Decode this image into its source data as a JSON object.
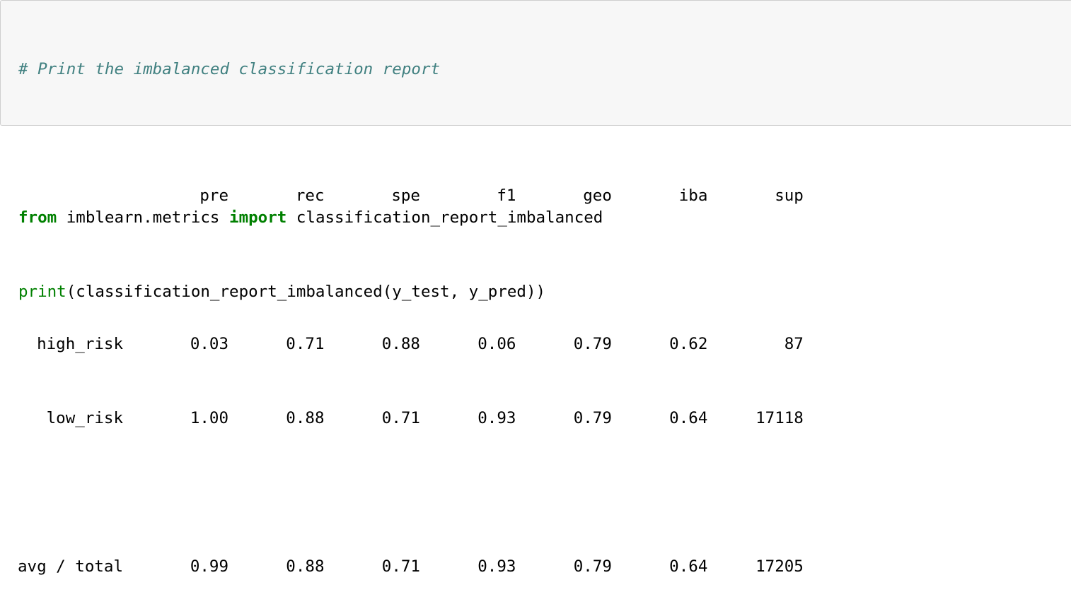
{
  "code_cell": {
    "lines": [
      {
        "comment": "# Print the imbalanced classification report"
      },
      {
        "blank": ""
      },
      {
        "kw1": "from",
        "t1": " imblearn.metrics ",
        "kw2": "import",
        "t2": " classification_report_imbalanced"
      },
      {
        "builtin": "print",
        "t1": "(classification_report_imbalanced(y_test, y_pred))"
      }
    ]
  },
  "report": {
    "headers": [
      "pre",
      "rec",
      "spe",
      "f1",
      "geo",
      "iba",
      "sup"
    ],
    "rows": [
      {
        "label": "high_risk",
        "values": [
          "0.03",
          "0.71",
          "0.88",
          "0.06",
          "0.79",
          "0.62",
          "87"
        ]
      },
      {
        "label": "low_risk",
        "values": [
          "1.00",
          "0.88",
          "0.71",
          "0.93",
          "0.79",
          "0.64",
          "17118"
        ]
      }
    ],
    "total": {
      "label": "avg / total",
      "values": [
        "0.99",
        "0.88",
        "0.71",
        "0.93",
        "0.79",
        "0.64",
        "17205"
      ]
    }
  }
}
